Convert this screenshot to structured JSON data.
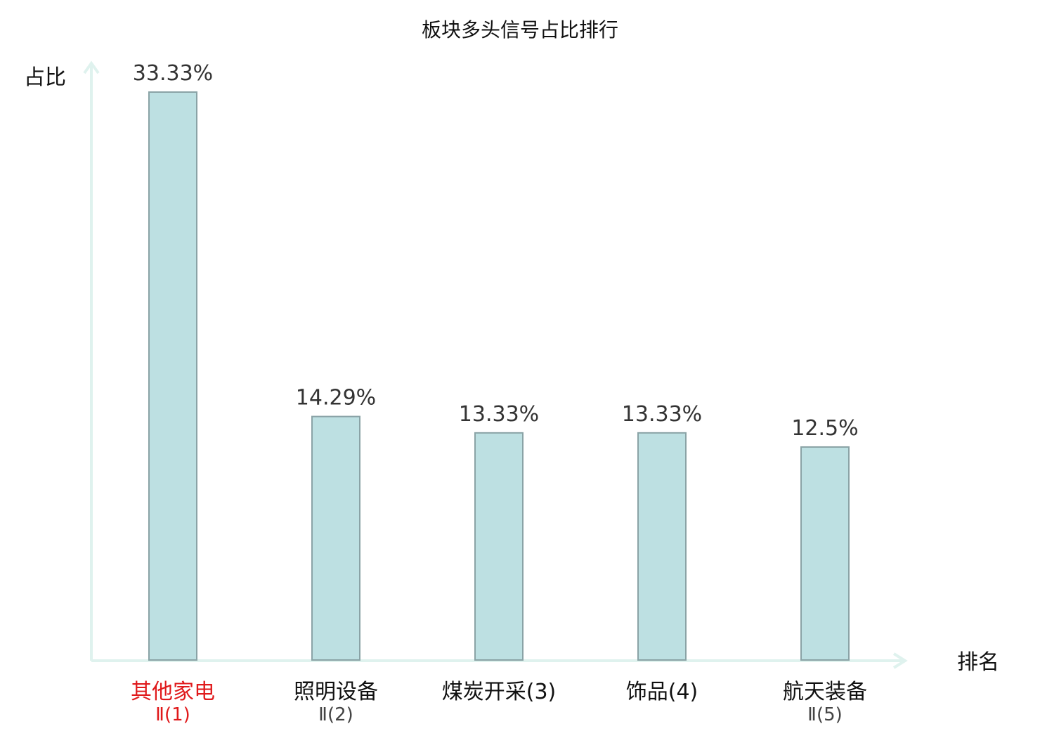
{
  "chart_data": {
    "type": "bar",
    "title": "板块多头信号占比排行",
    "ylabel": "占比",
    "xlabel": "排名",
    "categories": [
      {
        "line1": "其他家电",
        "line2": "Ⅱ(1)",
        "highlight": true
      },
      {
        "line1": "照明设备",
        "line2": "Ⅱ(2)",
        "highlight": false
      },
      {
        "line1": "煤炭开采(3)",
        "line2": "",
        "highlight": false
      },
      {
        "line1": "饰品(4)",
        "line2": "",
        "highlight": false
      },
      {
        "line1": "航天装备",
        "line2": "Ⅱ(5)",
        "highlight": false
      }
    ],
    "values": [
      33.33,
      14.29,
      13.33,
      13.33,
      12.5
    ],
    "value_labels": [
      "33.33%",
      "14.29%",
      "13.33%",
      "13.33%",
      "12.5%"
    ],
    "ylim": [
      0,
      33.33
    ],
    "grid": false,
    "colors": {
      "bar_fill": "#bde0e2",
      "bar_stroke": "#8aa3a6",
      "axis": "#dff2ee",
      "highlight_text": "#e0191b",
      "normal_text": "#111111",
      "sub_text": "#444444"
    }
  }
}
